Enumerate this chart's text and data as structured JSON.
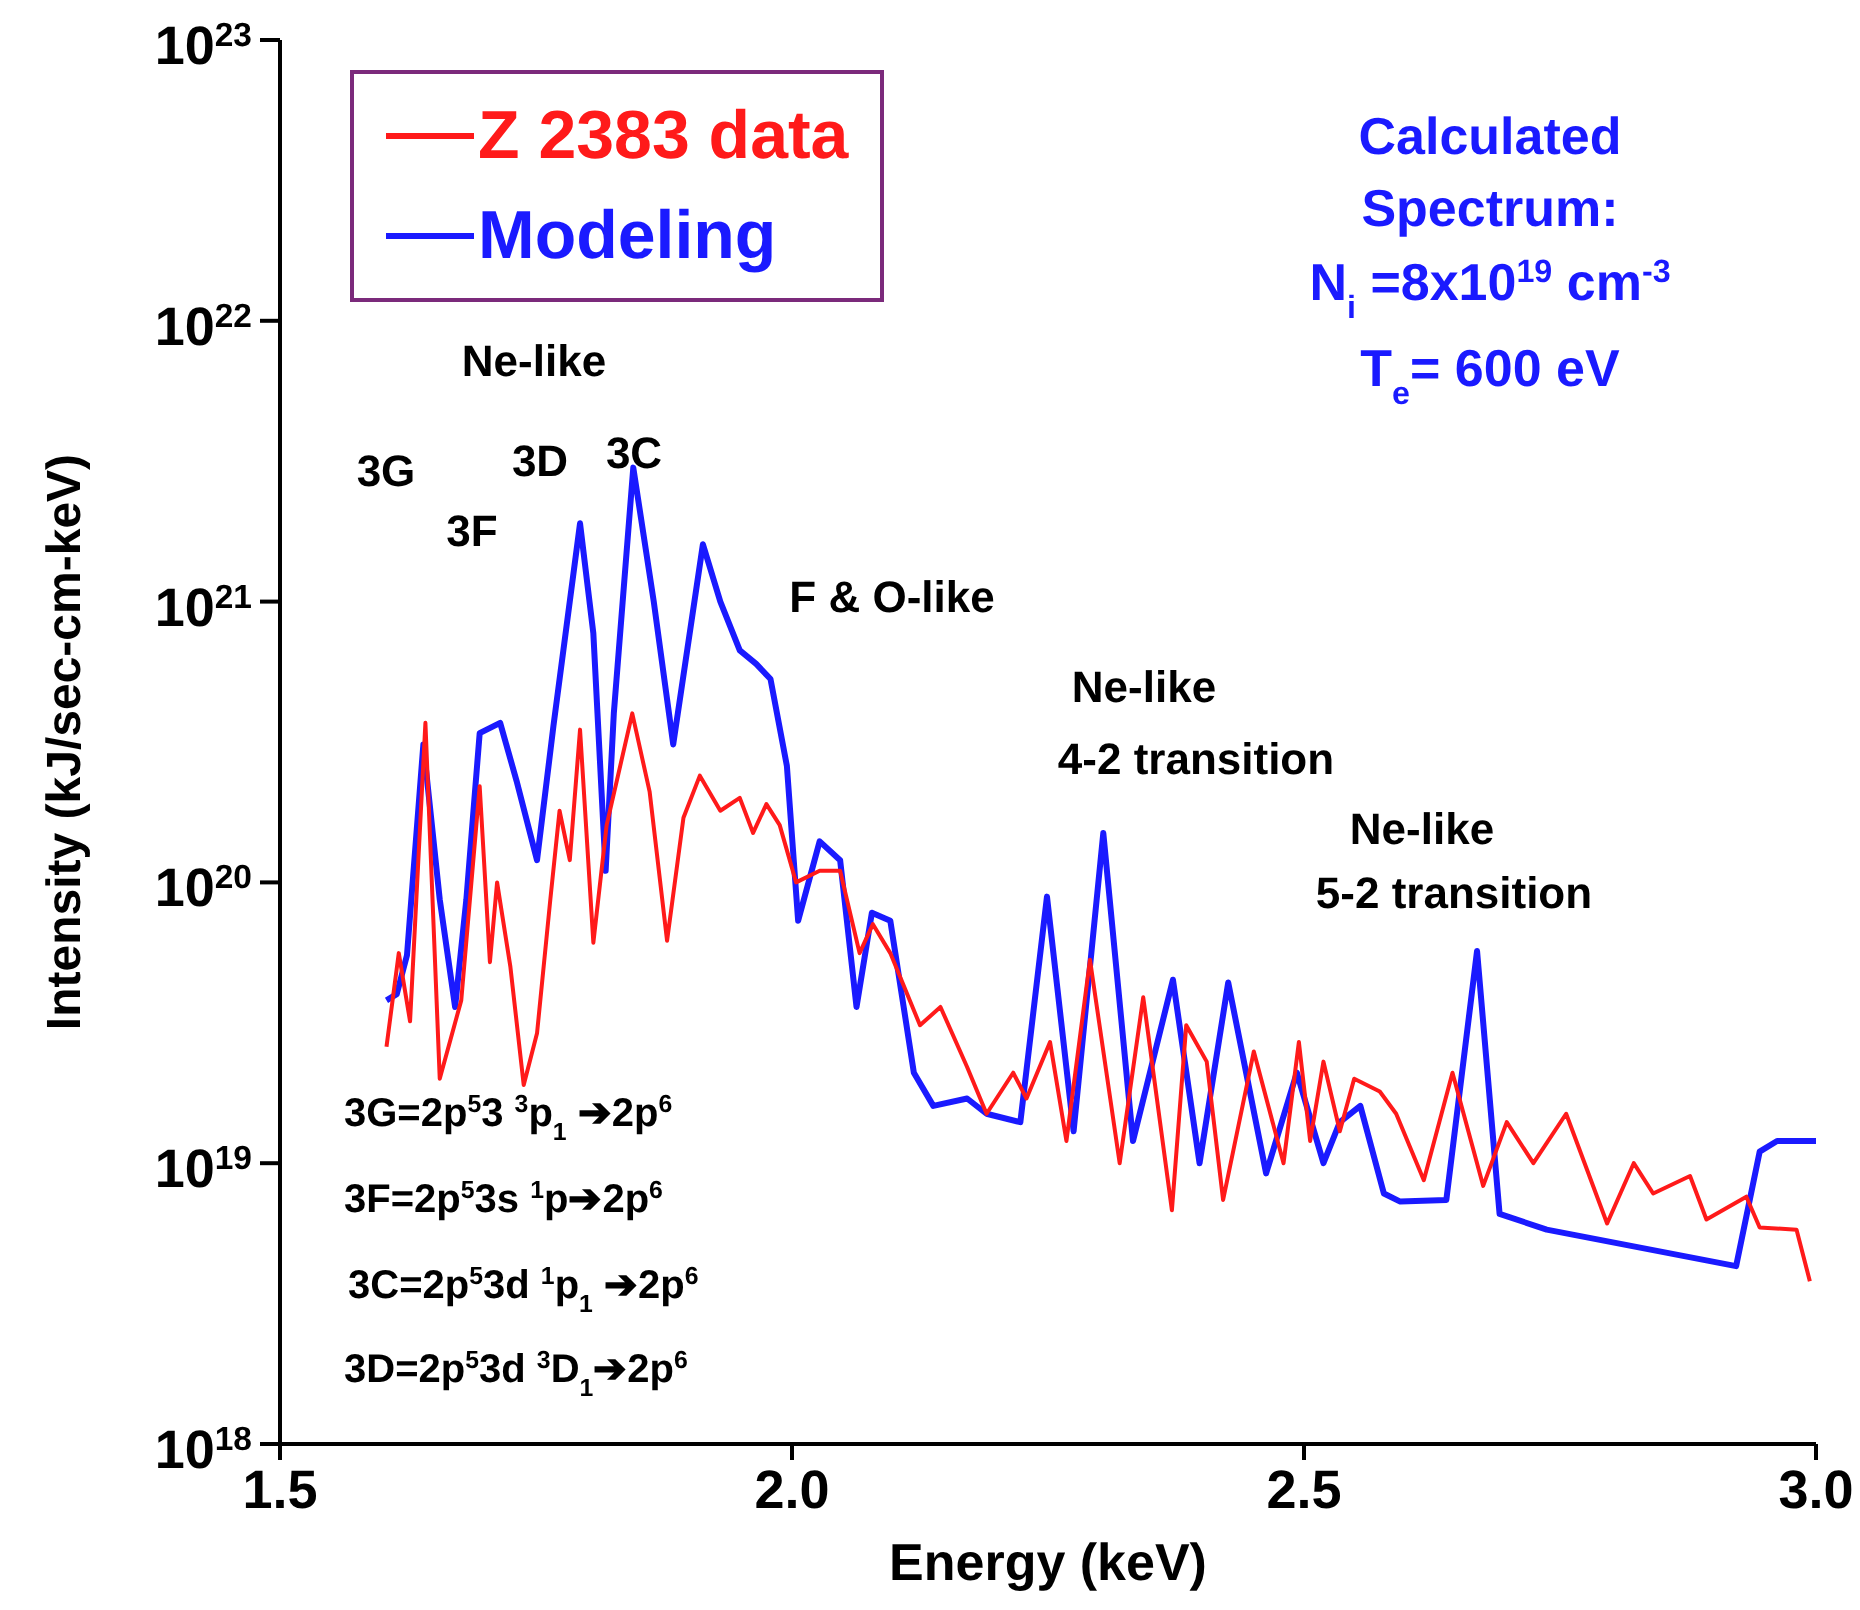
{
  "chart_data": {
    "type": "line",
    "xlabel": "Energy (keV)",
    "ylabel": "Intensity (kJ/sec-cm-keV)",
    "log": "y",
    "xlim": [
      1.5,
      3.0
    ],
    "xticks": [
      1.5,
      {
        "value": 2,
        "label": "2.0"
      },
      2.5,
      {
        "value": 3,
        "label": "3.0"
      }
    ],
    "ylim": [
      1e+18,
      1e+23
    ],
    "yticks": [
      {
        "value": 1e+18,
        "label": "10$^{18}$"
      },
      {
        "value": 1e+19,
        "label": "10$^{19}$"
      },
      {
        "value": 1e+20,
        "label": "10$^{20}$"
      },
      {
        "value": 1e+21,
        "label": "10$^{21}$"
      },
      {
        "value": 1e+22,
        "label": "10$^{22}$"
      },
      {
        "value": 1e+23,
        "label": "10$^{23}$"
      }
    ],
    "legend": "top left",
    "grid": false,
    "series": [
      {
        "name": "Z 2383 data",
        "color": "#ff1a1a",
        "x": [
          1.604,
          1.616,
          1.627,
          1.642,
          1.656,
          1.677,
          1.695,
          1.705,
          1.712,
          1.725,
          1.738,
          1.751,
          1.764,
          1.773,
          1.783,
          1.793,
          1.806,
          1.819,
          1.844,
          1.861,
          1.878,
          1.894,
          1.91,
          1.93,
          1.949,
          1.962,
          1.975,
          1.988,
          2.004,
          2.027,
          2.047,
          2.066,
          2.079,
          2.096,
          2.125,
          2.145,
          2.171,
          2.19,
          2.216,
          2.229,
          2.252,
          2.268,
          2.291,
          2.32,
          2.343,
          2.371,
          2.385,
          2.405,
          2.421,
          2.451,
          2.48,
          2.495,
          2.506,
          2.519,
          2.535,
          2.549,
          2.574,
          2.59,
          2.617,
          2.645,
          2.675,
          2.698,
          2.724,
          2.756,
          2.796,
          2.822,
          2.841,
          2.877,
          2.893,
          2.932,
          2.945,
          2.981,
          2.994
        ],
        "values": [
          2.6e+19,
          5.6e+19,
          3.2e+19,
          3.7e+20,
          2e+19,
          3.8e+19,
          2.2e+20,
          5.2e+19,
          1e+20,
          5e+19,
          1.9e+19,
          2.9e+19,
          8.7e+19,
          1.8e+20,
          1.2e+20,
          3.5e+20,
          6.1e+19,
          1.6e+20,
          4e+20,
          2.1e+20,
          6.2e+19,
          1.7e+20,
          2.4e+20,
          1.8e+20,
          2e+20,
          1.5e+20,
          1.9e+20,
          1.6e+20,
          1e+20,
          1.1e+20,
          1.1e+20,
          5.6e+19,
          7.1e+19,
          5.6e+19,
          3.1e+19,
          3.6e+19,
          2.2e+19,
          1.5e+19,
          2.1e+19,
          1.7e+19,
          2.7e+19,
          1.2e+19,
          5.3e+19,
          1e+19,
          3.9e+19,
          6.8e+18,
          3.1e+19,
          2.3e+19,
          7.4e+18,
          2.5e+19,
          1e+19,
          2.7e+19,
          1.2e+19,
          2.3e+19,
          1.3e+19,
          2e+19,
          1.8e+19,
          1.5e+19,
          8.7e+18,
          2.1e+19,
          8.3e+18,
          1.4e+19,
          1e+19,
          1.5e+19,
          6.1e+18,
          1e+19,
          7.8e+18,
          9e+18,
          6.3e+18,
          7.6e+18,
          5.9e+18,
          5.8e+18,
          3.8e+18
        ]
      },
      {
        "name": "Modeling",
        "color": "#1a1aff",
        "x": [
          1.604,
          1.614,
          1.624,
          1.64,
          1.656,
          1.671,
          1.682,
          1.695,
          1.715,
          1.731,
          1.751,
          1.767,
          1.793,
          1.806,
          1.818,
          1.826,
          1.845,
          1.865,
          1.884,
          1.913,
          1.93,
          1.949,
          1.965,
          1.979,
          1.995,
          2.006,
          2.027,
          2.047,
          2.063,
          2.078,
          2.096,
          2.119,
          2.138,
          2.171,
          2.19,
          2.223,
          2.249,
          2.275,
          2.304,
          2.333,
          2.372,
          2.398,
          2.426,
          2.463,
          2.493,
          2.519,
          2.535,
          2.555,
          2.578,
          2.594,
          2.639,
          2.669,
          2.691,
          2.737,
          2.922,
          2.945,
          2.962,
          3.0
        ],
        "values": [
          3.8e+19,
          4e+19,
          5.5e+19,
          3.1e+20,
          8.7e+19,
          3.6e+19,
          8.7e+19,
          3.4e+20,
          3.7e+20,
          2.3e+20,
          1.2e+20,
          3.6e+20,
          1.9e+21,
          7.7e+20,
          1.1e+20,
          4e+20,
          3e+21,
          1e+21,
          3.1e+20,
          1.6e+21,
          1e+21,
          6.7e+20,
          6e+20,
          5.3e+20,
          2.6e+20,
          7.3e+19,
          1.4e+20,
          1.2e+20,
          3.6e+19,
          7.8e+19,
          7.3e+19,
          2.1e+19,
          1.6e+19,
          1.7e+19,
          1.5e+19,
          1.4e+19,
          8.9e+19,
          1.3e+19,
          1.5e+20,
          1.2e+19,
          4.5e+19,
          1e+19,
          4.4e+19,
          9.2e+18,
          2.1e+19,
          1e+19,
          1.4e+19,
          1.6e+19,
          7.8e+18,
          7.3e+18,
          7.4e+18,
          5.7e+19,
          6.6e+18,
          5.8e+18,
          4.3e+18,
          1.1e+19,
          1.2e+19,
          1.2e+19
        ]
      }
    ],
    "annotations": [
      "Calculated",
      "Spectrum:",
      "N$_{i}$ =8x10$^{19}$ cm$^{-3}$",
      "T$_{e}$= 600 eV",
      "Ne-like",
      "3G",
      "3F",
      "3D",
      "3C",
      "F & O-like",
      "Ne-like",
      "4-2 transition",
      "Ne-like",
      "5-2 transition",
      "3G=2p$^{5}$3 $^{3}$p$_{1}$ ➔2p$^{6}$",
      "3F=2p$^{5}$3s $^{1}$p➔2p$^{6}$",
      "3C=2p$^{5}$3d $^{1}$p$_{1}$ ➔2p$^{6}$",
      "3D=2p$^{5}$3d $^{3}$D$_{1}$➔2p$^{6}$"
    ]
  }
}
